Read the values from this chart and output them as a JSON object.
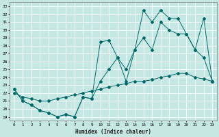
{
  "xlabel": "Humidex (Indice chaleur)",
  "xlim": [
    -0.5,
    23.5
  ],
  "ylim": [
    18.5,
    33.5
  ],
  "xticks": [
    0,
    1,
    2,
    3,
    4,
    5,
    6,
    7,
    8,
    9,
    10,
    11,
    12,
    13,
    14,
    15,
    16,
    17,
    18,
    19,
    20,
    21,
    22,
    23
  ],
  "yticks": [
    19,
    20,
    21,
    22,
    23,
    24,
    25,
    26,
    27,
    28,
    29,
    30,
    31,
    32,
    33
  ],
  "bg_color": "#c6e8e4",
  "grid_color": "#ffffff",
  "line_color": "#006868",
  "line1_x": [
    0,
    1,
    2,
    3,
    4,
    5,
    6,
    7,
    8,
    9,
    10,
    11,
    12,
    13,
    14,
    15,
    16,
    17,
    18,
    19,
    20,
    21,
    22,
    23
  ],
  "line1_y": [
    22.5,
    21.0,
    20.5,
    19.8,
    19.5,
    19.0,
    19.3,
    19.0,
    21.5,
    21.3,
    28.5,
    28.7,
    26.5,
    25.0,
    27.5,
    32.5,
    31.0,
    32.5,
    31.5,
    31.5,
    29.5,
    27.5,
    31.5,
    23.5
  ],
  "line2_x": [
    0,
    1,
    2,
    3,
    4,
    5,
    6,
    7,
    8,
    9,
    10,
    11,
    12,
    13,
    14,
    15,
    16,
    17,
    18,
    19,
    20,
    21,
    22,
    23
  ],
  "line2_y": [
    22.5,
    21.0,
    20.5,
    19.8,
    19.5,
    19.0,
    19.3,
    19.0,
    21.5,
    21.3,
    23.5,
    25.0,
    26.5,
    23.5,
    27.5,
    29.0,
    27.5,
    31.0,
    30.0,
    29.5,
    29.5,
    27.5,
    26.5,
    23.5
  ],
  "line3_x": [
    0,
    1,
    2,
    3,
    4,
    5,
    6,
    7,
    8,
    9,
    10,
    11,
    12,
    13,
    14,
    15,
    16,
    17,
    18,
    19,
    20,
    21,
    22,
    23
  ],
  "line3_y": [
    22.0,
    21.5,
    21.3,
    21.0,
    21.0,
    21.3,
    21.5,
    21.8,
    22.0,
    22.3,
    22.5,
    22.8,
    23.0,
    23.2,
    23.5,
    23.5,
    23.7,
    24.0,
    24.2,
    24.5,
    24.5,
    24.0,
    23.8,
    23.5
  ]
}
